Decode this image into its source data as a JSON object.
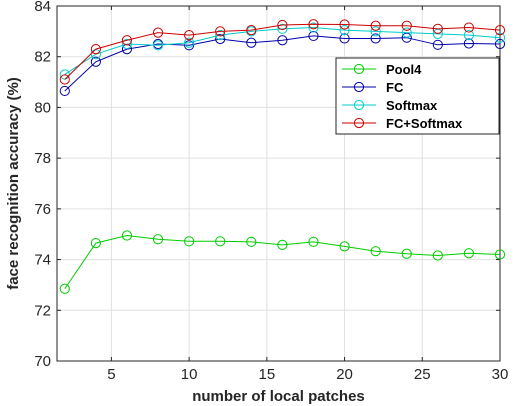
{
  "chart_data": {
    "type": "line",
    "xlabel": "number of  local patches",
    "ylabel": "face recognition accuracy (%)",
    "xlim": [
      1.5,
      30
    ],
    "ylim": [
      70,
      84
    ],
    "x_ticks": [
      5,
      10,
      15,
      20,
      25,
      30
    ],
    "y_ticks": [
      70,
      72,
      74,
      76,
      78,
      80,
      82,
      84
    ],
    "grid": true,
    "legend_position": "upper-right",
    "x": [
      2,
      4,
      6,
      8,
      10,
      12,
      14,
      16,
      18,
      20,
      22,
      24,
      26,
      28,
      30
    ],
    "series": [
      {
        "name": "Pool4",
        "color": "#00cc00",
        "marker": "circle",
        "values": [
          72.85,
          74.65,
          74.95,
          74.8,
          74.72,
          74.72,
          74.7,
          74.58,
          74.7,
          74.52,
          74.33,
          74.23,
          74.16,
          74.25,
          74.2
        ]
      },
      {
        "name": "FC",
        "color": "#0000aa",
        "marker": "circle",
        "values": [
          80.65,
          81.8,
          82.3,
          82.5,
          82.45,
          82.7,
          82.55,
          82.65,
          82.82,
          82.72,
          82.72,
          82.75,
          82.47,
          82.52,
          82.5
        ]
      },
      {
        "name": "Softmax",
        "color": "#00cccc",
        "marker": "circle",
        "values": [
          81.3,
          82.1,
          82.5,
          82.45,
          82.55,
          82.85,
          83.0,
          83.1,
          83.15,
          83.05,
          83.0,
          82.95,
          82.9,
          82.85,
          82.75
        ]
      },
      {
        "name": "FC+Softmax",
        "color": "#cc0000",
        "marker": "circle",
        "values": [
          81.1,
          82.3,
          82.65,
          82.95,
          82.85,
          83.0,
          83.05,
          83.25,
          83.28,
          83.27,
          83.22,
          83.22,
          83.1,
          83.15,
          83.05
        ]
      }
    ]
  }
}
